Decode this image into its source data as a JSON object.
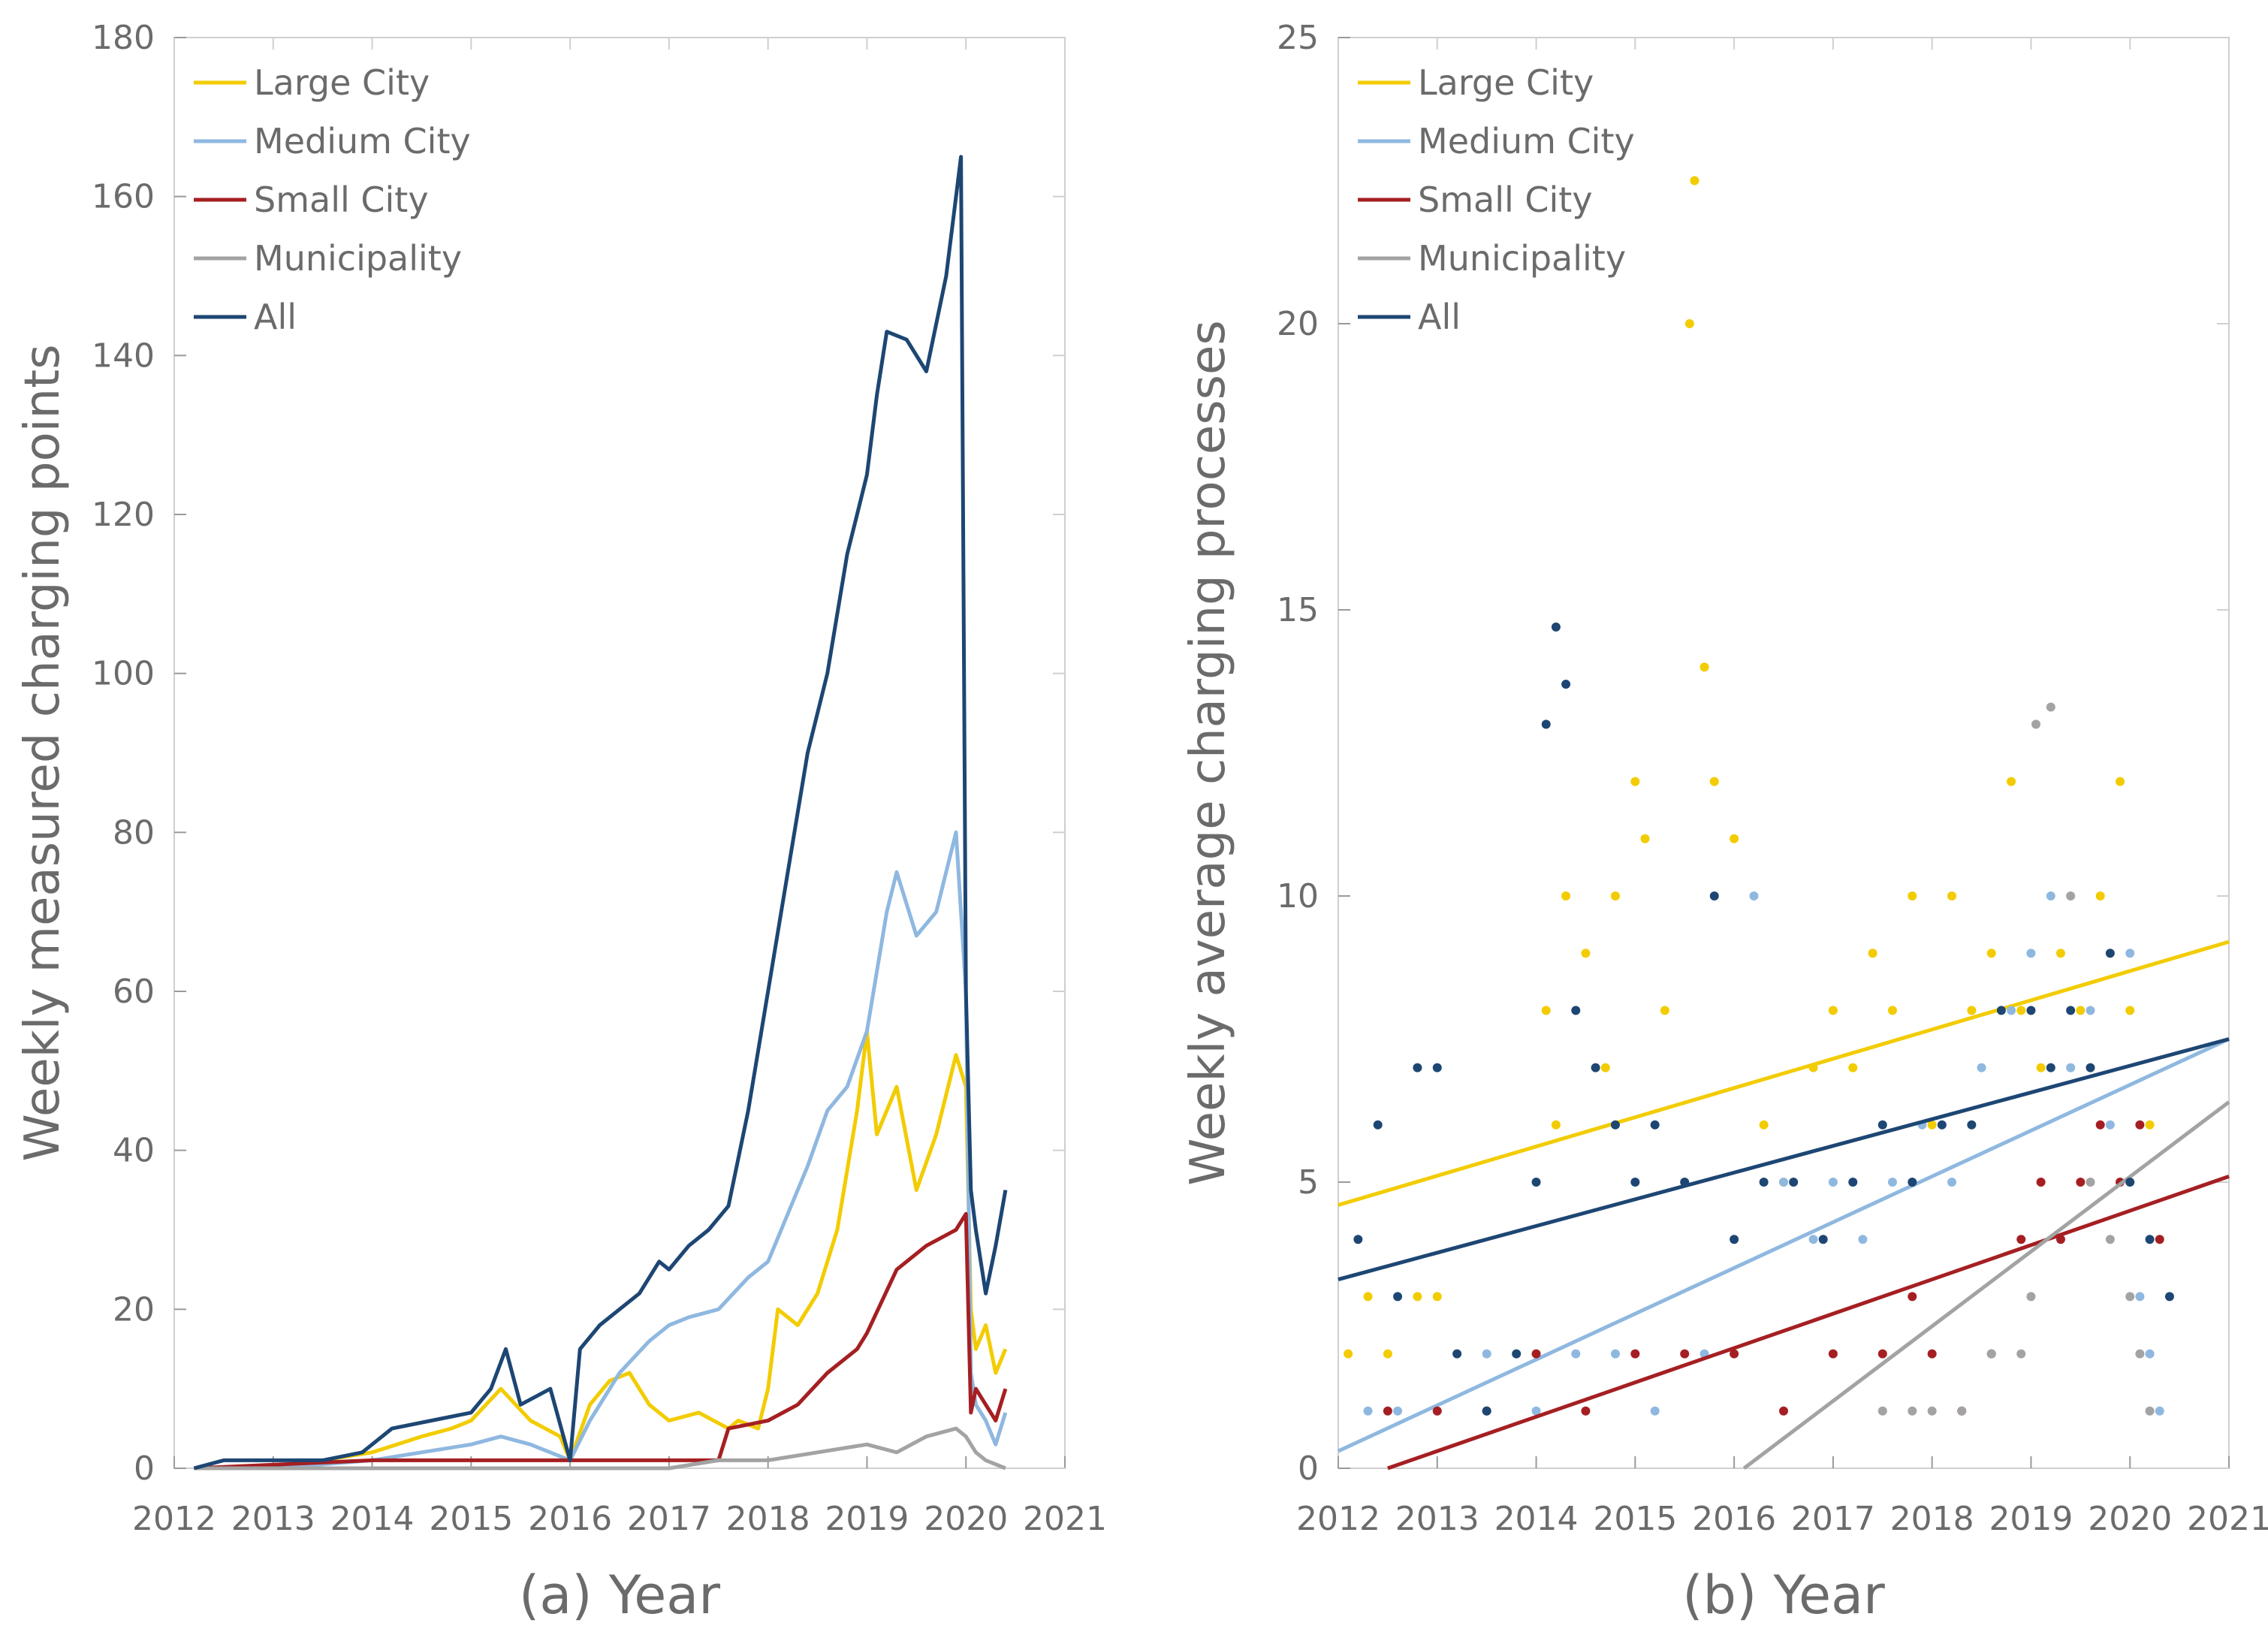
{
  "chart_data": [
    {
      "type": "line",
      "panel": "a",
      "xlabel": "(a) Year",
      "ylabel": "Weekly measured charging points",
      "xlim": [
        2012,
        2021
      ],
      "ylim": [
        0,
        180
      ],
      "xticks": [
        "2012",
        "2013",
        "2014",
        "2015",
        "2016",
        "2017",
        "2018",
        "2019",
        "2020",
        "2021"
      ],
      "yticks": [
        "0",
        "20",
        "40",
        "60",
        "80",
        "100",
        "120",
        "140",
        "160",
        "180"
      ],
      "legend": "top-left",
      "grid": false,
      "series": [
        {
          "name": "Large City",
          "color": "#f2cc00",
          "x": [
            2012.2,
            2013.0,
            2014.0,
            2014.5,
            2014.8,
            2015.0,
            2015.3,
            2015.6,
            2015.9,
            2016.0,
            2016.2,
            2016.4,
            2016.6,
            2016.8,
            2017.0,
            2017.3,
            2017.6,
            2017.7,
            2017.9,
            2018.0,
            2018.1,
            2018.3,
            2018.5,
            2018.7,
            2018.9,
            2019.0,
            2019.1,
            2019.3,
            2019.5,
            2019.7,
            2019.9,
            2020.0,
            2020.05,
            2020.1,
            2020.2,
            2020.3,
            2020.4
          ],
          "y": [
            0,
            0,
            2,
            4,
            5,
            6,
            10,
            6,
            4,
            1,
            8,
            11,
            12,
            8,
            6,
            7,
            5,
            6,
            5,
            10,
            20,
            18,
            22,
            30,
            45,
            55,
            42,
            48,
            35,
            42,
            52,
            48,
            20,
            15,
            18,
            12,
            15
          ]
        },
        {
          "name": "Medium City",
          "color": "#8fb8e0",
          "x": [
            2012.2,
            2013.0,
            2014.0,
            2014.5,
            2015.0,
            2015.3,
            2015.6,
            2016.0,
            2016.2,
            2016.5,
            2016.8,
            2017.0,
            2017.2,
            2017.5,
            2017.8,
            2018.0,
            2018.2,
            2018.4,
            2018.6,
            2018.8,
            2019.0,
            2019.2,
            2019.3,
            2019.5,
            2019.7,
            2019.9,
            2020.0,
            2020.05,
            2020.1,
            2020.2,
            2020.3,
            2020.4
          ],
          "y": [
            0,
            0,
            1,
            2,
            3,
            4,
            3,
            1,
            6,
            12,
            16,
            18,
            19,
            20,
            24,
            26,
            32,
            38,
            45,
            48,
            55,
            70,
            75,
            67,
            70,
            80,
            60,
            12,
            8,
            6,
            3,
            7
          ]
        },
        {
          "name": "Small City",
          "color": "#a51f22",
          "x": [
            2012.2,
            2014.0,
            2015.0,
            2016.0,
            2017.0,
            2017.5,
            2017.6,
            2018.0,
            2018.3,
            2018.6,
            2018.9,
            2019.0,
            2019.3,
            2019.6,
            2019.9,
            2020.0,
            2020.05,
            2020.1,
            2020.2,
            2020.3,
            2020.4
          ],
          "y": [
            0,
            1,
            1,
            1,
            1,
            1,
            5,
            6,
            8,
            12,
            15,
            17,
            25,
            28,
            30,
            32,
            7,
            10,
            8,
            6,
            10
          ]
        },
        {
          "name": "Municipality",
          "color": "#a3a3a3",
          "x": [
            2012.2,
            2016.0,
            2017.0,
            2017.5,
            2018.0,
            2018.5,
            2019.0,
            2019.3,
            2019.6,
            2019.9,
            2020.0,
            2020.1,
            2020.2,
            2020.4
          ],
          "y": [
            0,
            0,
            0,
            1,
            1,
            2,
            3,
            2,
            4,
            5,
            4,
            2,
            1,
            0
          ]
        },
        {
          "name": "All",
          "color": "#1d4673",
          "x": [
            2012.2,
            2012.5,
            2013.0,
            2013.5,
            2013.9,
            2014.2,
            2014.6,
            2015.0,
            2015.2,
            2015.35,
            2015.5,
            2015.8,
            2016.0,
            2016.1,
            2016.3,
            2016.5,
            2016.7,
            2016.9,
            2017.0,
            2017.2,
            2017.4,
            2017.6,
            2017.8,
            2018.0,
            2018.2,
            2018.4,
            2018.6,
            2018.8,
            2018.9,
            2019.0,
            2019.1,
            2019.2,
            2019.4,
            2019.6,
            2019.8,
            2019.95,
            2020.0,
            2020.05,
            2020.1,
            2020.2,
            2020.3,
            2020.4
          ],
          "y": [
            0,
            1,
            1,
            1,
            2,
            5,
            6,
            7,
            10,
            15,
            8,
            10,
            1,
            15,
            18,
            20,
            22,
            26,
            25,
            28,
            30,
            33,
            45,
            60,
            75,
            90,
            100,
            115,
            120,
            125,
            135,
            143,
            142,
            138,
            150,
            165,
            60,
            35,
            30,
            22,
            28,
            35
          ]
        }
      ]
    },
    {
      "type": "scatter",
      "panel": "b",
      "xlabel": "(b) Year",
      "ylabel": "Weekly average charging processes",
      "xlim": [
        2012,
        2021
      ],
      "ylim": [
        0,
        25
      ],
      "xticks": [
        "2012",
        "2013",
        "2014",
        "2015",
        "2016",
        "2017",
        "2018",
        "2019",
        "2020",
        "2021"
      ],
      "yticks": [
        "0",
        "5",
        "10",
        "15",
        "20",
        "25"
      ],
      "legend": "top-left",
      "grid": false,
      "series": [
        {
          "name": "Large City",
          "color": "#f2cc00",
          "trend": [
            [
              2012,
              4.6
            ],
            [
              2021,
              9.2
            ]
          ],
          "x": [
            2012.1,
            2012.3,
            2012.5,
            2012.8,
            2013.0,
            2014.1,
            2014.2,
            2014.3,
            2014.5,
            2014.7,
            2014.8,
            2015.0,
            2015.1,
            2015.3,
            2015.55,
            2015.6,
            2015.7,
            2015.8,
            2016.0,
            2016.3,
            2016.5,
            2016.8,
            2017.0,
            2017.2,
            2017.4,
            2017.6,
            2017.8,
            2018.0,
            2018.2,
            2018.4,
            2018.6,
            2018.8,
            2018.9,
            2019.1,
            2019.3,
            2019.5,
            2019.7,
            2019.9,
            2020.0,
            2020.2
          ],
          "y": [
            2,
            3,
            2,
            3,
            3,
            8,
            6,
            10,
            9,
            7,
            10,
            12,
            11,
            8,
            20,
            22.5,
            14,
            12,
            11,
            6,
            5,
            7,
            8,
            7,
            9,
            8,
            10,
            6,
            10,
            8,
            9,
            12,
            8,
            7,
            9,
            8,
            10,
            12,
            8,
            6
          ]
        },
        {
          "name": "Medium City",
          "color": "#8fb8e0",
          "trend": [
            [
              2012,
              0.3
            ],
            [
              2021,
              7.5
            ]
          ],
          "x": [
            2012.3,
            2012.6,
            2013.0,
            2013.5,
            2014.0,
            2014.4,
            2014.8,
            2015.2,
            2015.7,
            2016.2,
            2016.5,
            2016.8,
            2017.0,
            2017.3,
            2017.6,
            2017.9,
            2018.2,
            2018.5,
            2018.8,
            2019.0,
            2019.2,
            2019.4,
            2019.6,
            2019.8,
            2020.0,
            2020.1,
            2020.2,
            2020.3
          ],
          "y": [
            1,
            1,
            1,
            2,
            1,
            2,
            2,
            1,
            2,
            10,
            5,
            4,
            5,
            4,
            5,
            6,
            5,
            7,
            8,
            9,
            10,
            7,
            8,
            6,
            9,
            3,
            2,
            1
          ]
        },
        {
          "name": "Small City",
          "color": "#a51f22",
          "trend": [
            [
              2012.5,
              0
            ],
            [
              2021,
              5.1
            ]
          ],
          "x": [
            2012.5,
            2013.0,
            2013.5,
            2014.0,
            2014.5,
            2015.0,
            2015.5,
            2016.0,
            2016.5,
            2017.0,
            2017.5,
            2017.8,
            2018.0,
            2018.3,
            2018.6,
            2018.9,
            2019.1,
            2019.3,
            2019.5,
            2019.7,
            2019.9,
            2020.1,
            2020.3
          ],
          "y": [
            1,
            1,
            1,
            2,
            1,
            2,
            2,
            2,
            1,
            2,
            2,
            3,
            2,
            1,
            2,
            4,
            5,
            4,
            5,
            6,
            5,
            6,
            4
          ]
        },
        {
          "name": "Municipality",
          "color": "#a3a3a3",
          "trend": [
            [
              2016.1,
              0
            ],
            [
              2021,
              6.4
            ]
          ],
          "x": [
            2017.5,
            2017.8,
            2018.0,
            2018.3,
            2018.6,
            2018.9,
            2019.0,
            2019.05,
            2019.2,
            2019.4,
            2019.6,
            2019.8,
            2020.0,
            2020.1,
            2020.2
          ],
          "y": [
            1,
            1,
            1,
            1,
            2,
            2,
            3,
            13,
            13.3,
            10,
            5,
            4,
            3,
            2,
            1
          ]
        },
        {
          "name": "All",
          "color": "#1d4673",
          "trend": [
            [
              2012,
              3.3
            ],
            [
              2021,
              7.5
            ]
          ],
          "x": [
            2012.2,
            2012.4,
            2012.6,
            2012.8,
            2013.0,
            2013.2,
            2013.5,
            2013.8,
            2014.0,
            2014.1,
            2014.2,
            2014.3,
            2014.4,
            2014.6,
            2014.8,
            2015.0,
            2015.2,
            2015.5,
            2015.8,
            2016.0,
            2016.3,
            2016.6,
            2016.9,
            2017.2,
            2017.5,
            2017.8,
            2018.1,
            2018.4,
            2018.7,
            2019.0,
            2019.2,
            2019.4,
            2019.6,
            2019.8,
            2020.0,
            2020.2,
            2020.4
          ],
          "y": [
            4,
            6,
            3,
            7,
            7,
            2,
            1,
            2,
            5,
            13,
            14.7,
            13.7,
            8,
            7,
            6,
            5,
            6,
            5,
            10,
            4,
            5,
            5,
            4,
            5,
            6,
            5,
            6,
            6,
            8,
            8,
            7,
            8,
            7,
            9,
            5,
            4,
            3
          ]
        }
      ]
    }
  ]
}
